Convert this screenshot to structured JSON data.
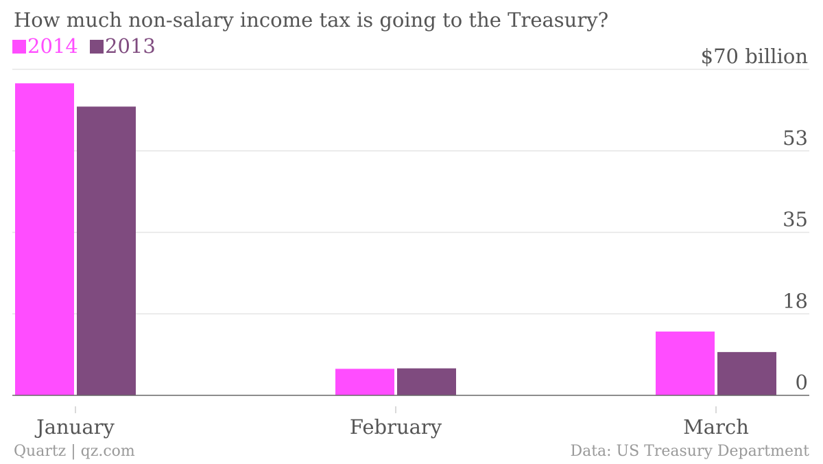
{
  "chart_data": {
    "type": "bar",
    "title": "How much non-salary income tax is going to the Treasury?",
    "categories": [
      "January",
      "February",
      "March"
    ],
    "series": [
      {
        "name": "2014",
        "color": "#ff4dff",
        "values": [
          67,
          5.7,
          13.7
        ]
      },
      {
        "name": "2013",
        "color": "#7f4b7f",
        "values": [
          62,
          5.8,
          9.3
        ]
      }
    ],
    "ylim": [
      0,
      70
    ],
    "yticks": [
      {
        "value": 0,
        "label": "0"
      },
      {
        "value": 17.5,
        "label": "18"
      },
      {
        "value": 35,
        "label": "35"
      },
      {
        "value": 52.5,
        "label": "53"
      },
      {
        "value": 70,
        "label": "$70 billion"
      }
    ],
    "grid": true,
    "legend_position": "top-left"
  },
  "footer": {
    "source_left": "Quartz | qz.com",
    "source_right": "Data: US Treasury Department"
  },
  "colors": {
    "accent_2014": "#ff4dff",
    "accent_2013": "#7f4b7f",
    "text": "#555555",
    "gridline": "#e5e5e5"
  }
}
